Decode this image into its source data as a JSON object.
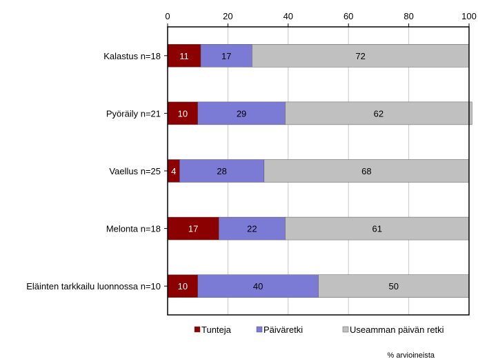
{
  "chart_data": {
    "type": "bar",
    "orientation": "horizontal",
    "stacked": true,
    "categories": [
      "Kalastus n=18",
      "Pyöräily n=21",
      "Vaellus n=25",
      "Melonta n=18",
      "Eläinten tarkkailu luonnossa n=10"
    ],
    "series": [
      {
        "name": "Tunteja",
        "color": "#8b0000",
        "label_color": "#ffffff",
        "values": [
          11,
          10,
          4,
          17,
          10
        ]
      },
      {
        "name": "Päiväretki",
        "color": "#7b7bd6",
        "label_color": "#000000",
        "values": [
          17,
          29,
          28,
          22,
          40
        ]
      },
      {
        "name": "Useamman päivän retki",
        "color": "#c0c0c0",
        "label_color": "#000000",
        "values": [
          72,
          62,
          68,
          61,
          50
        ]
      }
    ],
    "xlim": [
      0,
      100
    ],
    "xticks": [
      "0",
      "20",
      "40",
      "60",
      "80",
      "100"
    ],
    "xaxis_position": "top",
    "grid": "vertical",
    "legend_position": "bottom",
    "note": "% arvioineista"
  }
}
